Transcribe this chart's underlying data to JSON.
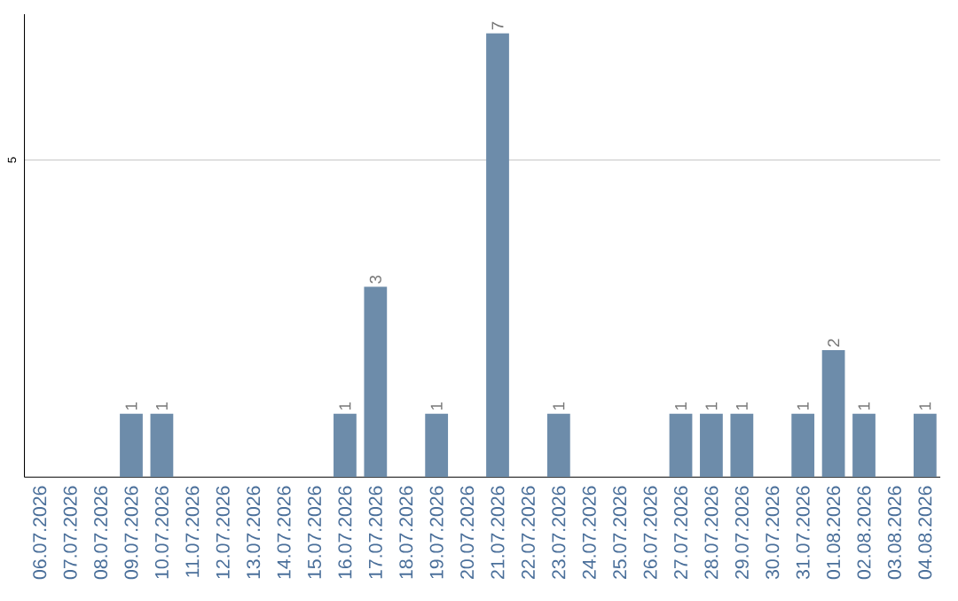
{
  "chart_data": {
    "type": "bar",
    "categories": [
      "06.07.2026",
      "07.07.2026",
      "08.07.2026",
      "09.07.2026",
      "10.07.2026",
      "11.07.2026",
      "12.07.2026",
      "13.07.2026",
      "14.07.2026",
      "15.07.2026",
      "16.07.2026",
      "17.07.2026",
      "18.07.2026",
      "19.07.2026",
      "20.07.2026",
      "21.07.2026",
      "22.07.2026",
      "23.07.2026",
      "24.07.2026",
      "25.07.2026",
      "26.07.2026",
      "27.07.2026",
      "28.07.2026",
      "29.07.2026",
      "30.07.2026",
      "31.07.2026",
      "01.08.2026",
      "02.08.2026",
      "03.08.2026",
      "04.08.2026"
    ],
    "values": [
      0,
      0,
      0,
      1,
      1,
      0,
      0,
      0,
      0,
      0,
      1,
      3,
      0,
      1,
      0,
      7,
      0,
      1,
      0,
      0,
      0,
      1,
      1,
      1,
      0,
      1,
      2,
      1,
      0,
      1
    ],
    "value_labels": [
      null,
      null,
      null,
      "1",
      "1",
      null,
      null,
      null,
      null,
      null,
      "1",
      "3",
      null,
      "1",
      null,
      "7",
      null,
      "1",
      null,
      null,
      null,
      "1",
      "1",
      "1",
      null,
      "1",
      "2",
      "1",
      null,
      "1"
    ],
    "color": "#6d8caa",
    "ylim": [
      0,
      7.3
    ],
    "yticks": [
      5
    ],
    "grid": "y"
  }
}
